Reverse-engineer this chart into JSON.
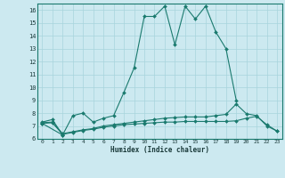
{
  "xlabel": "Humidex (Indice chaleur)",
  "xlim": [
    -0.5,
    23.5
  ],
  "ylim": [
    6,
    16.5
  ],
  "xticks": [
    0,
    1,
    2,
    3,
    4,
    5,
    6,
    7,
    8,
    9,
    10,
    11,
    12,
    13,
    14,
    15,
    16,
    17,
    18,
    19,
    20,
    21,
    22,
    23
  ],
  "yticks": [
    6,
    7,
    8,
    9,
    10,
    11,
    12,
    13,
    14,
    15,
    16
  ],
  "bg_color": "#cce9f0",
  "grid_color": "#a8d4dc",
  "line_color": "#1a7a6e",
  "series": [
    {
      "x": [
        0,
        1,
        2,
        3,
        4,
        5,
        6,
        7,
        8,
        9,
        10,
        11,
        12,
        13,
        14,
        15,
        16,
        17,
        18,
        19
      ],
      "y": [
        7.3,
        7.5,
        6.3,
        7.8,
        8.0,
        7.3,
        7.6,
        7.8,
        9.6,
        11.5,
        15.5,
        15.5,
        16.3,
        13.3,
        16.3,
        15.3,
        16.3,
        14.3,
        13.0,
        9.0
      ]
    },
    {
      "x": [
        0,
        2
      ],
      "y": [
        7.2,
        6.3
      ]
    },
    {
      "x": [
        0,
        1,
        2,
        3,
        4,
        5,
        6,
        7,
        8,
        9,
        10,
        11,
        12,
        13,
        14,
        15,
        16,
        17,
        18,
        19,
        20,
        21,
        22,
        23
      ],
      "y": [
        7.2,
        7.25,
        6.35,
        6.5,
        6.65,
        6.75,
        6.9,
        7.0,
        7.1,
        7.15,
        7.2,
        7.25,
        7.3,
        7.3,
        7.35,
        7.35,
        7.35,
        7.35,
        7.35,
        7.4,
        7.6,
        7.75,
        7.1,
        6.6
      ]
    },
    {
      "x": [
        0,
        1,
        2,
        3,
        4,
        5,
        6,
        7,
        8,
        9,
        10,
        11,
        12,
        13,
        14,
        15,
        16,
        17,
        18,
        19,
        20,
        21,
        22,
        23
      ],
      "y": [
        7.25,
        7.3,
        6.4,
        6.55,
        6.7,
        6.8,
        7.0,
        7.1,
        7.2,
        7.3,
        7.4,
        7.5,
        7.6,
        7.65,
        7.7,
        7.7,
        7.7,
        7.8,
        7.9,
        8.7,
        7.95,
        7.8,
        7.0,
        6.6
      ]
    }
  ]
}
